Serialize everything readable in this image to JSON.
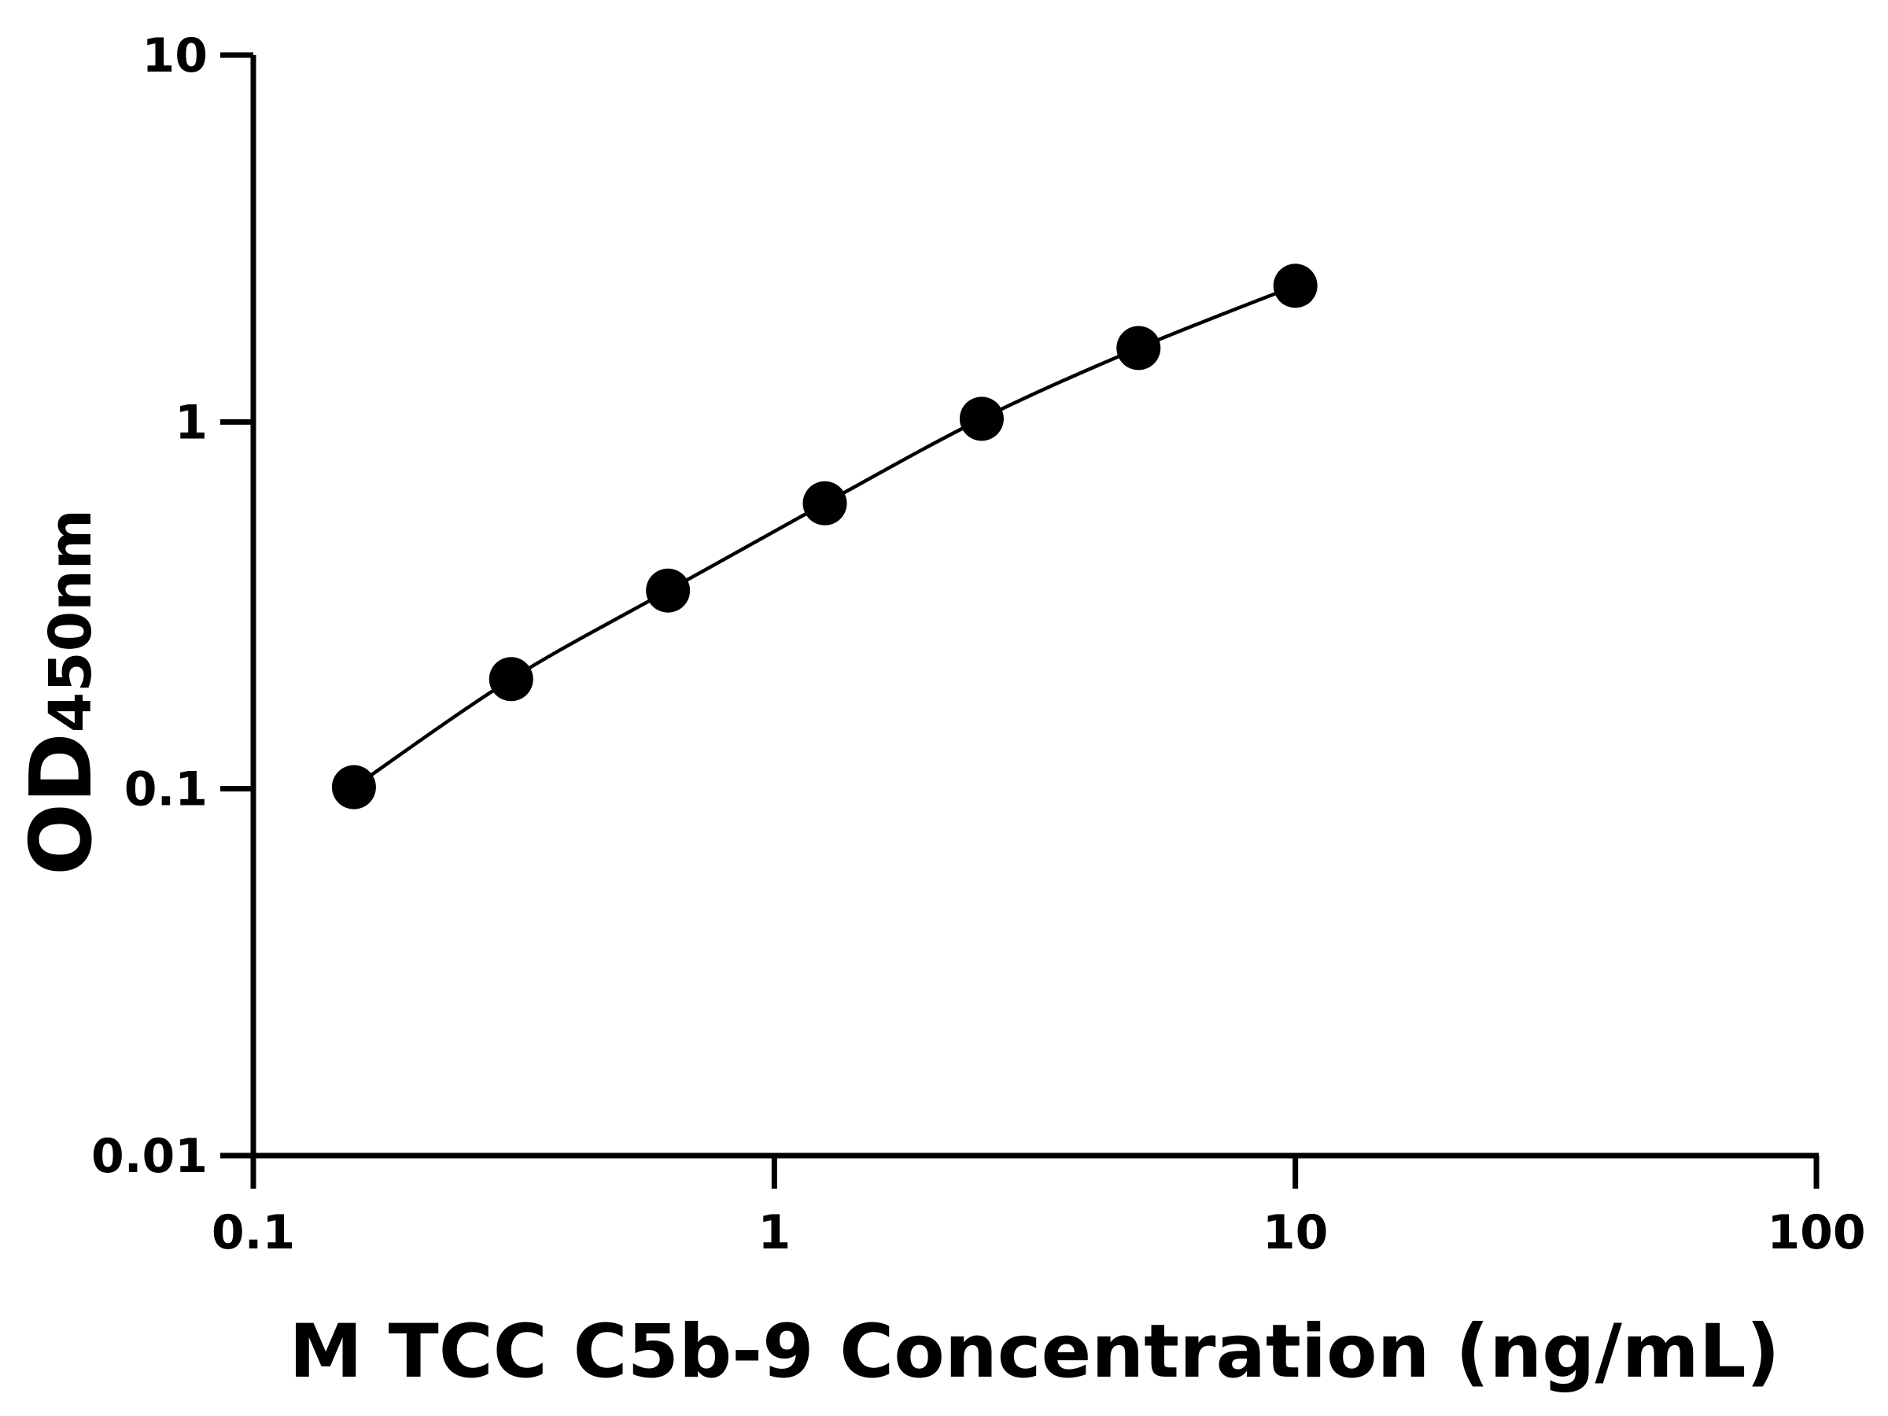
{
  "chart_data": {
    "type": "scatter",
    "title": "",
    "xlabel": "M TCC C5b-9 Concentration (ng/mL)",
    "ylabel": "OD",
    "ylabel_subscript": "450nm",
    "xscale": "log",
    "yscale": "log",
    "xlim": [
      0.1,
      100
    ],
    "ylim": [
      0.01,
      10
    ],
    "xticks": [
      "0.1",
      "1",
      "10",
      "100"
    ],
    "yticks": [
      "0.01",
      "0.1",
      "1",
      "10"
    ],
    "grid": false,
    "legend": "none",
    "fit_line": true,
    "marker_color": "#000000",
    "line_color": "#000000",
    "series": [
      {
        "x": [
          0.156,
          0.3125,
          0.625,
          1.25,
          2.5,
          5,
          10
        ],
        "y": [
          0.101,
          0.199,
          0.347,
          0.6,
          1.02,
          1.59,
          2.35
        ]
      }
    ]
  }
}
